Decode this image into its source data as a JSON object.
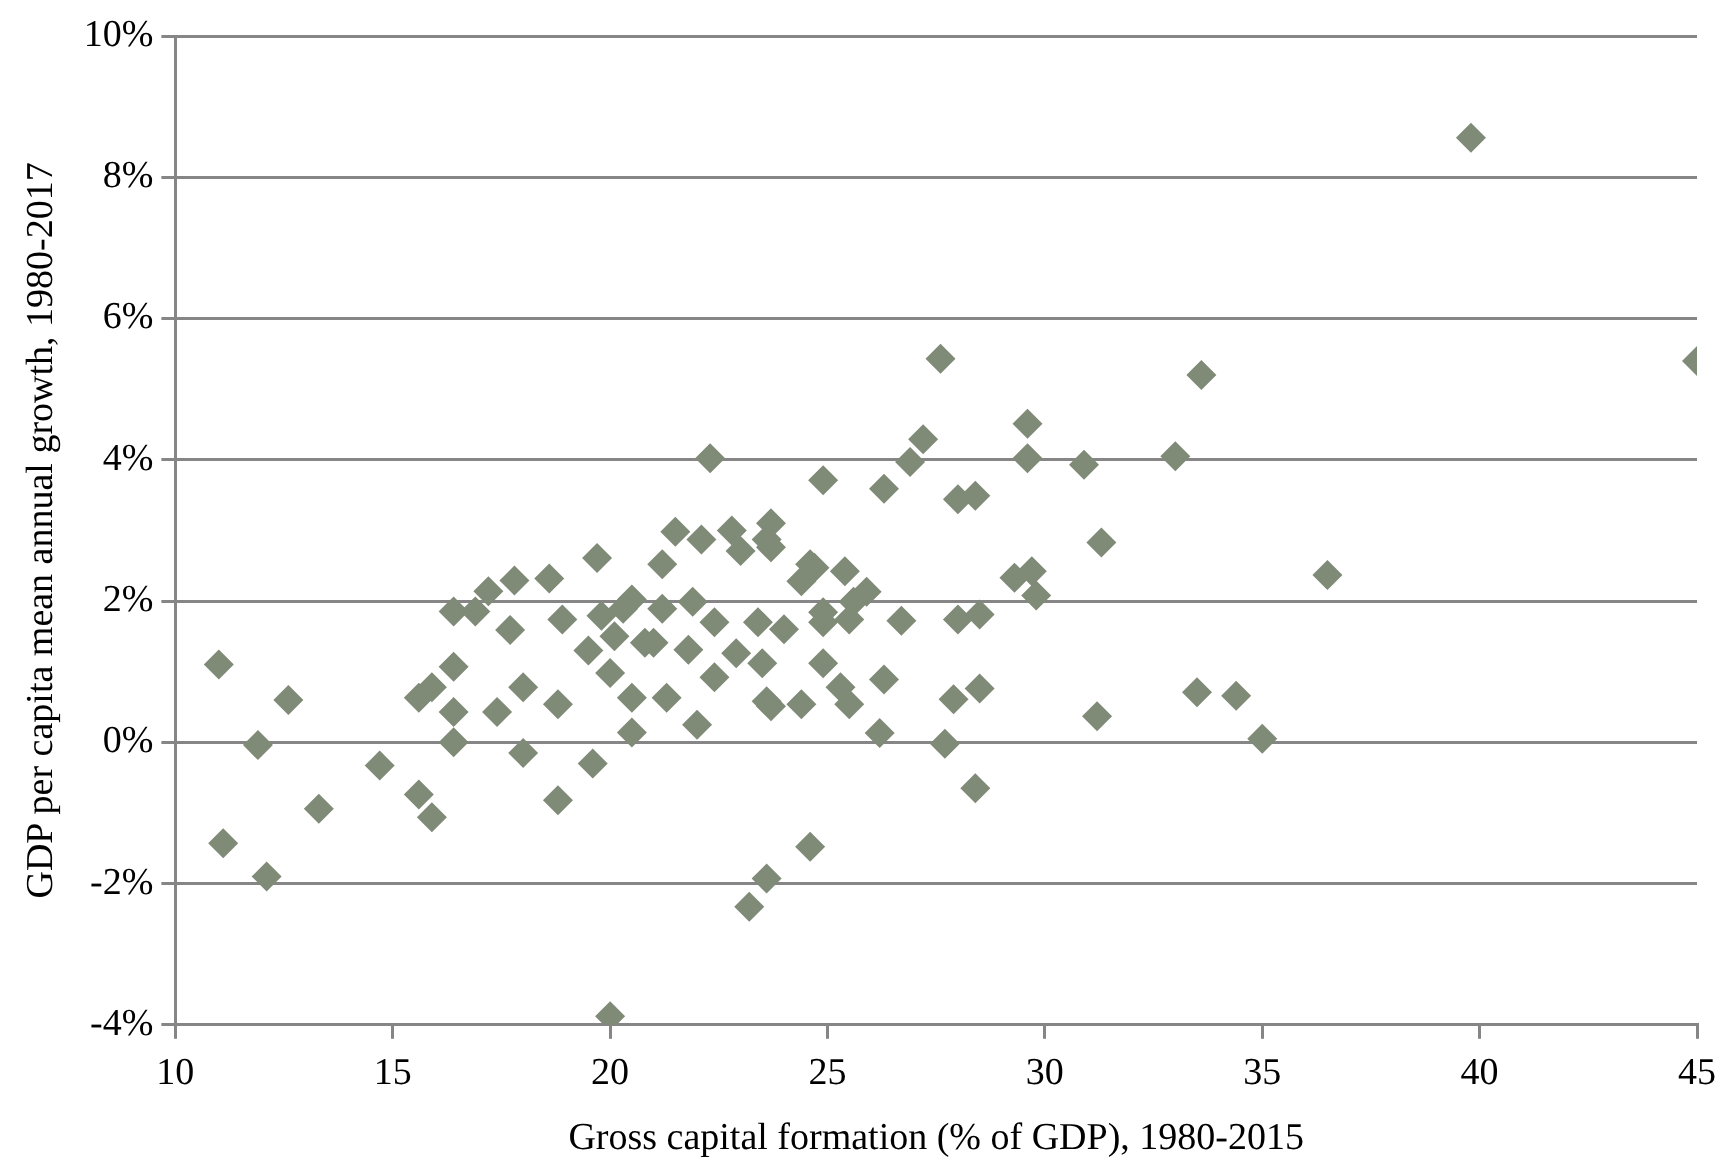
{
  "chart_data": {
    "type": "scatter",
    "xlabel": "Gross capital formation (% of GDP), 1980-2015",
    "ylabel": "GDP per capita mean annual growth, 1980-2017",
    "xlim": [
      10,
      45
    ],
    "xticks": [
      10,
      15,
      20,
      25,
      30,
      35,
      40,
      45
    ],
    "ylim": [
      -4,
      10
    ],
    "yticks": [
      {
        "value": -4,
        "label": "-4%"
      },
      {
        "value": -2,
        "label": "-2%"
      },
      {
        "value": 0,
        "label": "0%"
      },
      {
        "value": 2,
        "label": "2%"
      },
      {
        "value": 4,
        "label": "4%"
      },
      {
        "value": 6,
        "label": "6%"
      },
      {
        "value": 8,
        "label": "8%"
      },
      {
        "value": 10,
        "label": "10%"
      }
    ],
    "grid": "y",
    "marker": "diamond",
    "legend": false,
    "series": [
      {
        "color": "#7f8a77",
        "x": [
          11.0,
          11.1,
          11.9,
          12.1,
          12.6,
          13.3,
          14.7,
          15.6,
          15.6,
          15.9,
          15.9,
          16.4,
          16.4,
          16.4,
          16.4,
          16.9,
          17.2,
          17.8,
          17.7,
          17.4,
          18.0,
          18.0,
          18.6,
          18.8,
          18.9,
          18.8,
          19.7,
          19.6,
          19.5,
          19.8,
          20.0,
          20.5,
          20.5,
          20.5,
          20.8,
          20.1,
          22.0,
          20.0,
          23.2,
          23.6,
          24.6,
          27.7,
          28.4,
          27.9,
          28.5,
          26.2,
          26.3,
          25.3,
          25.5,
          24.4,
          23.7,
          31.2,
          33.5,
          34.4,
          39.8,
          33.6,
          45.0,
          33.0,
          36.5,
          35.0,
          27.6,
          27.2,
          26.9,
          29.6,
          29.6,
          30.9,
          24.9,
          26.3,
          28.0,
          28.4,
          31.3,
          22.8,
          23.7,
          23.7,
          23.0,
          22.3,
          29.7,
          29.8,
          29.3,
          24.7,
          25.4,
          25.9,
          24.4,
          26.7,
          28.0,
          28.5,
          24.9,
          25.6,
          21.2,
          22.1,
          23.6,
          24.6,
          20.3,
          21.2,
          21.9,
          22.4,
          23.4,
          24.0,
          24.9,
          25.5,
          21.0,
          21.8,
          22.9,
          23.5,
          24.9,
          21.3,
          22.4,
          23.6,
          21.5
        ],
        "values": [
          1.1,
          -1.43,
          -0.04,
          -1.9,
          0.6,
          -0.94,
          -0.33,
          0.63,
          -0.74,
          -1.06,
          0.78,
          1.07,
          0,
          0.43,
          1.85,
          1.85,
          2.14,
          2.29,
          1.59,
          0.43,
          0.78,
          -0.15,
          2.32,
          0.54,
          1.74,
          -0.82,
          2.61,
          -0.3,
          1.3,
          1.79,
          0.98,
          2.02,
          0.14,
          0.63,
          1.41,
          1.5,
          0.25,
          -3.88,
          -2.33,
          -1.93,
          -1.48,
          -0.02,
          -0.65,
          0.61,
          0.76,
          0.13,
          0.89,
          0.78,
          0.54,
          0.54,
          0.51,
          0.37,
          0.71,
          0.66,
          8.56,
          5.2,
          5.4,
          4.05,
          2.37,
          0.05,
          5.43,
          4.29,
          3.97,
          4.51,
          4.02,
          3.93,
          3.71,
          3.59,
          3.44,
          3.49,
          2.83,
          3.0,
          3.1,
          2.76,
          2.71,
          4.02,
          2.42,
          2.08,
          2.33,
          2.47,
          2.42,
          2.13,
          2.28,
          1.72,
          1.74,
          1.81,
          1.7,
          1.99,
          2.52,
          2.87,
          2.87,
          2.52,
          1.89,
          1.89,
          1.99,
          1.7,
          1.7,
          1.6,
          1.84,
          1.74,
          1.41,
          1.31,
          1.26,
          1.12,
          1.12,
          0.63,
          0.92,
          0.58,
          2.98
        ]
      }
    ]
  }
}
